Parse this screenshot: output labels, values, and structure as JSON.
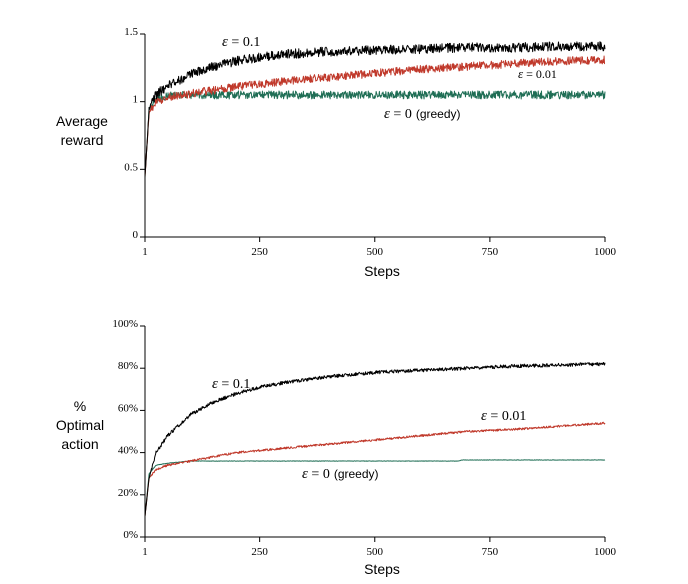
{
  "chart_data": [
    {
      "type": "line",
      "title": "",
      "ylabel_lines": [
        "Average",
        "reward"
      ],
      "xlabel": "Steps",
      "xlim": [
        1,
        1000
      ],
      "ylim": [
        0,
        1.5
      ],
      "xticks": [
        1,
        250,
        500,
        750,
        1000
      ],
      "xtick_labels": [
        "1",
        "250",
        "500",
        "750",
        "1000"
      ],
      "yticks": [
        0,
        0.5,
        1,
        1.5
      ],
      "ytick_labels": [
        "0",
        "0.5",
        "1",
        "1.5"
      ],
      "series": [
        {
          "name": "ε = 0.1",
          "color": "#000000",
          "annotation": {
            "symbol": "ε",
            "text": " = 0.1",
            "suffix": ""
          },
          "x": [
            1,
            10,
            25,
            50,
            100,
            150,
            200,
            250,
            300,
            400,
            500,
            600,
            700,
            800,
            900,
            1000
          ],
          "y": [
            0.45,
            0.95,
            1.05,
            1.12,
            1.2,
            1.26,
            1.3,
            1.33,
            1.35,
            1.37,
            1.38,
            1.39,
            1.4,
            1.4,
            1.41,
            1.41
          ],
          "noise": 0.035
        },
        {
          "name": "ε = 0.01",
          "color": "#c0392b",
          "annotation": {
            "symbol": "ε",
            "text": " = 0.01",
            "suffix": ""
          },
          "x": [
            1,
            10,
            25,
            50,
            100,
            200,
            300,
            400,
            500,
            600,
            700,
            800,
            900,
            1000
          ],
          "y": [
            0.45,
            0.92,
            1.0,
            1.03,
            1.06,
            1.11,
            1.15,
            1.18,
            1.21,
            1.24,
            1.26,
            1.28,
            1.3,
            1.31
          ],
          "noise": 0.03
        },
        {
          "name": "ε = 0 (greedy)",
          "color": "#1f6e55",
          "annotation": {
            "symbol": "ε",
            "text": " = 0",
            "suffix": "(greedy)"
          },
          "x": [
            1,
            10,
            25,
            50,
            100,
            1000
          ],
          "y": [
            0.45,
            0.95,
            1.02,
            1.04,
            1.05,
            1.05
          ],
          "noise": 0.03
        }
      ]
    },
    {
      "type": "line",
      "title": "",
      "ylabel_lines": [
        "%",
        "Optimal",
        "action"
      ],
      "xlabel": "Steps",
      "xlim": [
        1,
        1000
      ],
      "ylim": [
        0,
        100
      ],
      "xticks": [
        1,
        250,
        500,
        750,
        1000
      ],
      "xtick_labels": [
        "1",
        "250",
        "500",
        "750",
        "1000"
      ],
      "yticks": [
        0,
        20,
        40,
        60,
        80,
        100
      ],
      "ytick_labels": [
        "0%",
        "20%",
        "40%",
        "60%",
        "80%",
        "100%"
      ],
      "series": [
        {
          "name": "ε = 0.1",
          "color": "#000000",
          "annotation": {
            "symbol": "ε",
            "text": " = 0.1",
            "suffix": ""
          },
          "x": [
            1,
            10,
            25,
            50,
            100,
            150,
            200,
            250,
            300,
            400,
            500,
            600,
            700,
            800,
            900,
            1000
          ],
          "y": [
            10,
            28,
            40,
            48,
            58,
            64,
            68,
            71,
            73,
            76,
            78,
            79,
            80,
            81,
            81.5,
            82
          ],
          "noise": 0.8
        },
        {
          "name": "ε = 0.01",
          "color": "#c0392b",
          "annotation": {
            "symbol": "ε",
            "text": " = 0.01",
            "suffix": ""
          },
          "x": [
            1,
            10,
            25,
            50,
            100,
            200,
            300,
            400,
            500,
            600,
            700,
            800,
            900,
            1000
          ],
          "y": [
            10,
            28,
            32,
            34,
            36,
            40,
            42,
            44,
            46,
            48,
            50,
            51,
            52.5,
            54
          ],
          "noise": 0.5
        },
        {
          "name": "ε = 0 (greedy)",
          "color": "#1f6e55",
          "annotation": {
            "symbol": "ε",
            "text": " = 0",
            "suffix": "(greedy)"
          },
          "x": [
            1,
            10,
            25,
            50,
            100,
            680,
            690,
            1000
          ],
          "y": [
            10,
            30,
            34,
            35,
            36,
            36,
            36.5,
            36.5
          ],
          "noise": 0.1
        }
      ]
    }
  ]
}
